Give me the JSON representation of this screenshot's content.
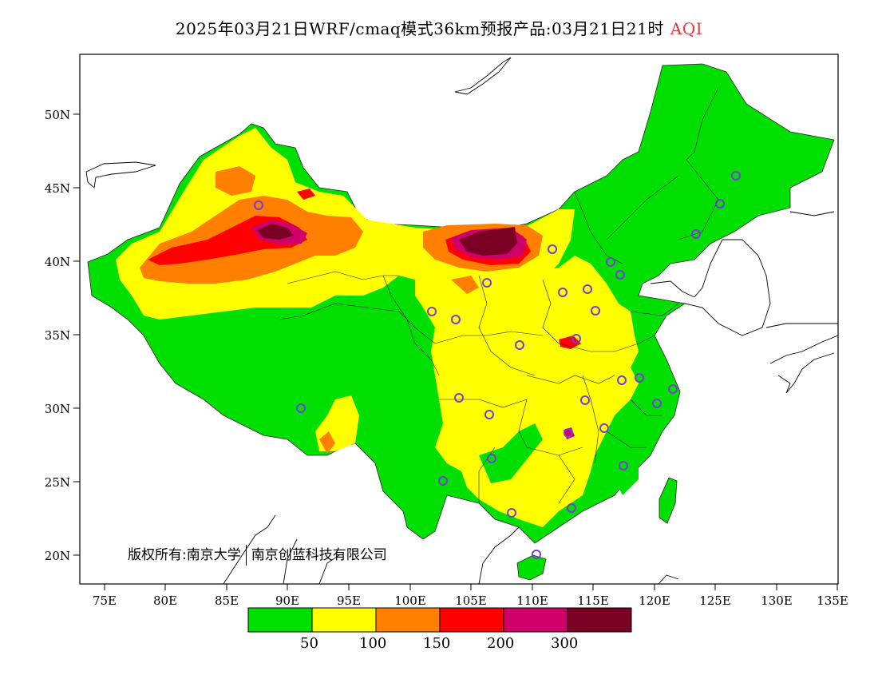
{
  "title": {
    "main": "2025年03月21日WRF/cmaq模式36km预报产品:03月21日21时",
    "variable": "AQI",
    "variable_color": "#e8363a"
  },
  "copyright": {
    "prefix": "版权所有:",
    "org1": "南京大学",
    "org2": "南京创蓝科技有限公司"
  },
  "axes": {
    "lat_labels": [
      "50N",
      "45N",
      "40N",
      "35N",
      "30N",
      "25N",
      "20N"
    ],
    "lon_labels": [
      "75E",
      "80E",
      "85E",
      "90E",
      "95E",
      "100E",
      "105E",
      "110E",
      "115E",
      "120E",
      "125E",
      "130E",
      "135E"
    ]
  },
  "legend": {
    "colors": [
      "#00e000",
      "#ffff00",
      "#ff8000",
      "#ff0000",
      "#d0006b",
      "#7a0024"
    ],
    "labels": [
      "50",
      "100",
      "150",
      "200",
      "300"
    ]
  },
  "city_marker_color": "#7a3cd6"
}
